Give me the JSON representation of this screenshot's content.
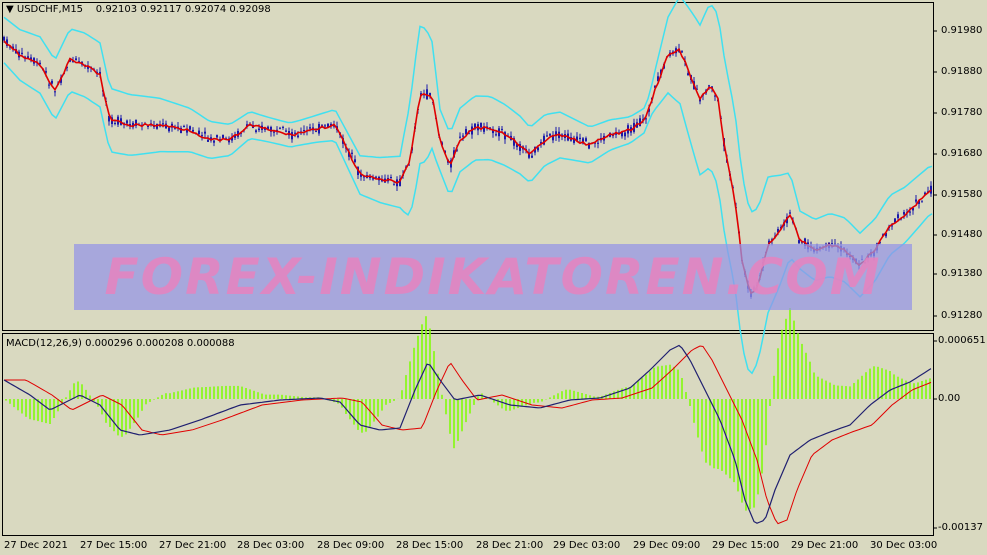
{
  "main": {
    "symbol_label": "USDCHF,M15",
    "ohlc": "0.92103 0.92117 0.92074 0.92098",
    "price_ticks": [
      "0.91980",
      "0.91880",
      "0.91780",
      "0.91680",
      "0.91580",
      "0.91480",
      "0.91380",
      "0.91280"
    ]
  },
  "macd": {
    "label": "MACD(12,26,9) 0.000296 0.000208 0.000088",
    "ticks": [
      "0.000651",
      "0.00",
      "-0.00137"
    ]
  },
  "time_axis": [
    "27 Dec 2021",
    "27 Dec 15:00",
    "27 Dec 21:00",
    "28 Dec 03:00",
    "28 Dec 09:00",
    "28 Dec 15:00",
    "28 Dec 21:00",
    "29 Dec 03:00",
    "29 Dec 09:00",
    "29 Dec 15:00",
    "29 Dec 21:00",
    "30 Dec 03:00"
  ],
  "watermark": "FOREX-INDIKATOREN.COM",
  "colors": {
    "background": "#d9d9c0",
    "candle": "#1a1aaa",
    "ma_line": "#e00000",
    "bands": "#40e0f0",
    "histogram": "#7cfc00",
    "macd_line": "#202070",
    "signal_line": "#e00000"
  }
}
